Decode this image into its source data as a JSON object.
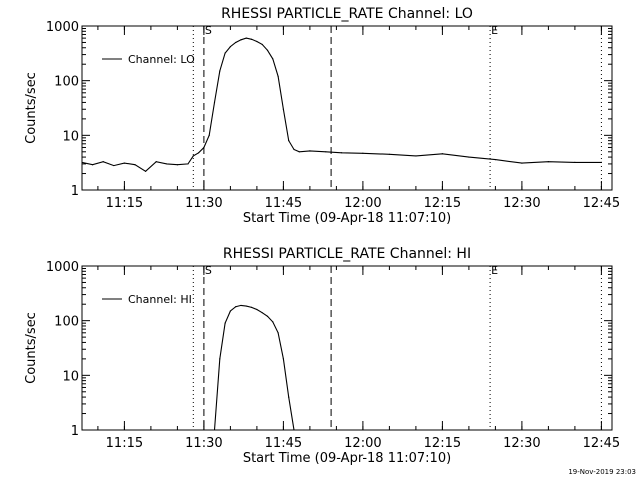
{
  "footer": {
    "timestamp": "19-Nov-2019 23:03"
  },
  "chart_data": [
    {
      "type": "line",
      "title": "RHESSI PARTICLE_RATE Channel: LO",
      "xlabel": "Start Time (09-Apr-18 11:07:10)",
      "ylabel": "Counts/sec",
      "xlim": [
        "11:07",
        "12:47"
      ],
      "ylim": [
        1,
        1000
      ],
      "y_scale": "log",
      "x_ticks": [
        "11:15",
        "11:30",
        "11:45",
        "12:00",
        "12:15",
        "12:30",
        "12:45"
      ],
      "y_ticks": [
        "1",
        "10",
        "100",
        "1000"
      ],
      "legend": {
        "label": "Channel: LO",
        "position": "top-left"
      },
      "markers": [
        {
          "time": "11:28",
          "style": "dotted",
          "label": ""
        },
        {
          "time": "11:30",
          "style": "dashed",
          "label": "S"
        },
        {
          "time": "11:54",
          "style": "dashed",
          "label": ""
        },
        {
          "time": "12:24",
          "style": "dotted",
          "label": "E"
        },
        {
          "time": "12:45",
          "style": "dotted",
          "label": ""
        }
      ],
      "series": [
        {
          "name": "Channel: LO",
          "x": [
            "11:07",
            "11:09",
            "11:11",
            "11:13",
            "11:15",
            "11:17",
            "11:19",
            "11:21",
            "11:23",
            "11:25",
            "11:27",
            "11:28",
            "11:29",
            "11:30",
            "11:31",
            "11:32",
            "11:33",
            "11:34",
            "11:35",
            "11:36",
            "11:37",
            "11:38",
            "11:39",
            "11:40",
            "11:41",
            "11:42",
            "11:43",
            "11:44",
            "11:45",
            "11:46",
            "11:47",
            "11:48",
            "11:50",
            "11:53",
            "11:56",
            "12:00",
            "12:05",
            "12:10",
            "12:15",
            "12:20",
            "12:25",
            "12:30",
            "12:35",
            "12:40",
            "12:45"
          ],
          "y": [
            3.2,
            2.9,
            3.3,
            2.8,
            3.1,
            2.9,
            2.2,
            3.3,
            3.0,
            2.9,
            3.0,
            4.2,
            4.8,
            6.0,
            10,
            40,
            150,
            320,
            420,
            500,
            560,
            600,
            570,
            520,
            460,
            360,
            250,
            120,
            30,
            8,
            5.5,
            5.0,
            5.2,
            5.0,
            4.8,
            4.7,
            4.5,
            4.2,
            4.6,
            4.0,
            3.6,
            3.1,
            3.3,
            3.2,
            3.2
          ]
        }
      ]
    },
    {
      "type": "line",
      "title": "RHESSI PARTICLE_RATE Channel: HI",
      "xlabel": "Start Time (09-Apr-18 11:07:10)",
      "ylabel": "Counts/sec",
      "xlim": [
        "11:07",
        "12:47"
      ],
      "ylim": [
        1,
        1000
      ],
      "y_scale": "log",
      "x_ticks": [
        "11:15",
        "11:30",
        "11:45",
        "12:00",
        "12:15",
        "12:30",
        "12:45"
      ],
      "y_ticks": [
        "1",
        "10",
        "100",
        "1000"
      ],
      "legend": {
        "label": "Channel: HI",
        "position": "top-left"
      },
      "markers": [
        {
          "time": "11:28",
          "style": "dotted",
          "label": ""
        },
        {
          "time": "11:30",
          "style": "dashed",
          "label": "S"
        },
        {
          "time": "11:54",
          "style": "dashed",
          "label": ""
        },
        {
          "time": "12:24",
          "style": "dotted",
          "label": "E"
        },
        {
          "time": "12:45",
          "style": "dotted",
          "label": ""
        }
      ],
      "series": [
        {
          "name": "Channel: HI",
          "x": [
            "11:32",
            "11:33",
            "11:34",
            "11:35",
            "11:36",
            "11:37",
            "11:38",
            "11:39",
            "11:40",
            "11:41",
            "11:42",
            "11:43",
            "11:44",
            "11:45",
            "11:46",
            "11:47"
          ],
          "y": [
            1.0,
            20,
            90,
            150,
            180,
            190,
            185,
            175,
            160,
            140,
            120,
            95,
            60,
            20,
            4,
            1.0
          ]
        }
      ]
    }
  ]
}
